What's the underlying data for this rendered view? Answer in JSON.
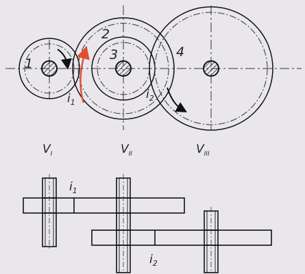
{
  "gear_labels": {
    "g1": "1",
    "g2": "2",
    "g3": "3",
    "g4": "4"
  },
  "ratio_labels": {
    "top_i1": "i",
    "top_i1_sub": "1",
    "top_i2": "i",
    "top_i2_sub": "2",
    "bot_i1": "i",
    "bot_i1_sub": "1",
    "bot_i2": "i",
    "bot_i2_sub": "2"
  },
  "shaft_labels": {
    "v1": "V",
    "v1_sub": "I",
    "v2": "V",
    "v2_sub": "II",
    "v3": "V",
    "v3_sub": "III"
  },
  "colors": {
    "arrow_accent": "#e05030",
    "line": "#111111",
    "background": "#e9e7eb"
  }
}
